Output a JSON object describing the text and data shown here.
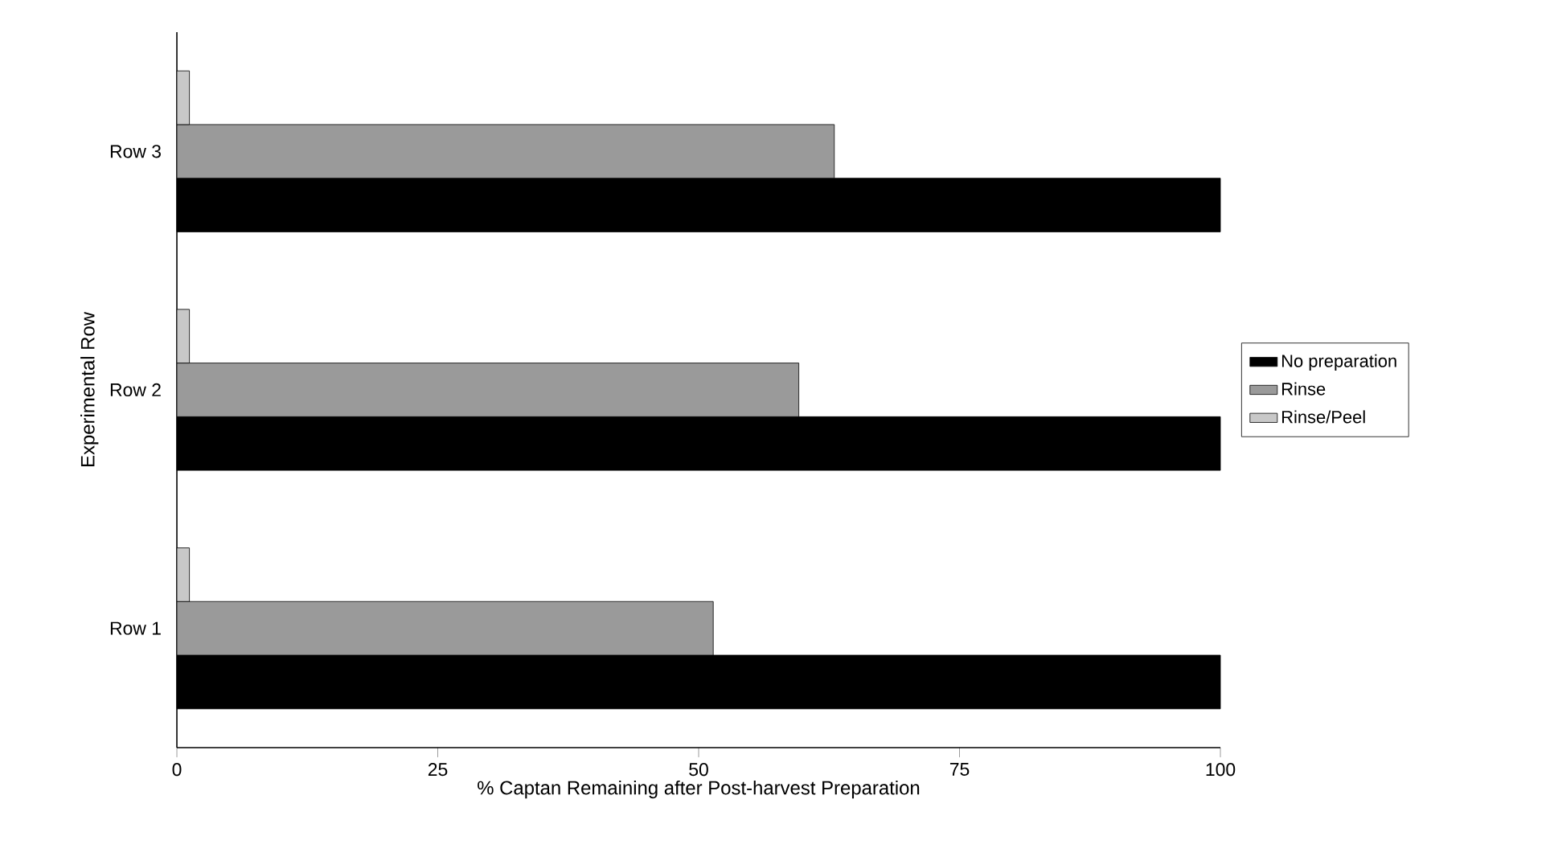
{
  "chart_data": {
    "type": "bar",
    "orientation": "horizontal",
    "xlabel": "% Captan Remaining after Post-harvest Preparation",
    "ylabel": "Experimental Row",
    "categories": [
      "Row 3",
      "Row 2",
      "Row 1"
    ],
    "series": [
      {
        "name": "No preparation",
        "color": "#000000",
        "values": [
          100,
          100,
          100
        ]
      },
      {
        "name": "Rinse",
        "color": "#9a9a9a",
        "values": [
          63,
          59.6,
          51.4
        ]
      },
      {
        "name": "Rinse/Peel",
        "color": "#c8c8c8",
        "values": [
          1.2,
          1.2,
          1.2
        ]
      }
    ],
    "xlim": [
      0,
      100
    ],
    "xticks": [
      0,
      25,
      50,
      75,
      100
    ],
    "grid": false,
    "legend": "right"
  }
}
